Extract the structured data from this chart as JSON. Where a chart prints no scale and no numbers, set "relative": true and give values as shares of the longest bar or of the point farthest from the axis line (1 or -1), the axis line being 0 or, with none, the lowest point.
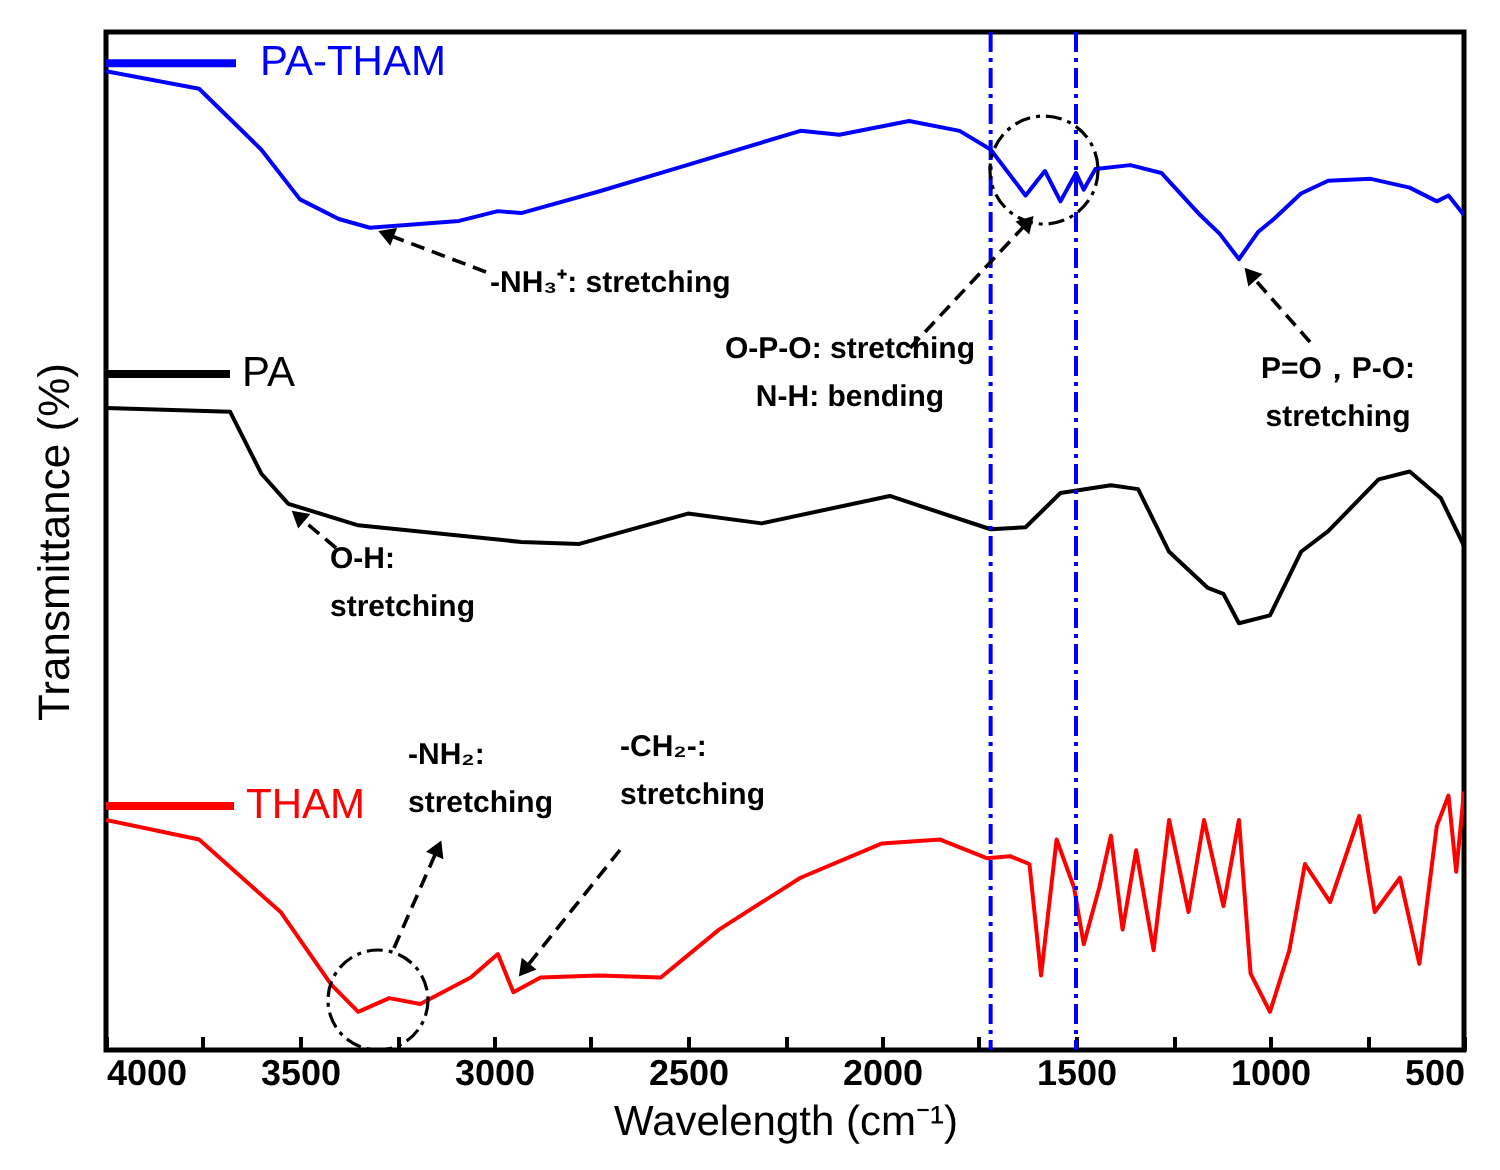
{
  "chart_data": {
    "type": "line",
    "relative": true,
    "xlabel": "Wavelength (cm⁻¹)",
    "legend": "top left",
    "ylabel": "Transmittance (%)",
    "xlim": [
      4000,
      500
    ],
    "xticks": [
      4000,
      {
        "value": 3750,
        "label": null
      },
      3500,
      {
        "value": 3250,
        "label": null
      },
      3000,
      {
        "value": 2750,
        "label": null
      },
      2500,
      {
        "value": 2250,
        "label": null
      },
      2000,
      {
        "value": 1750,
        "label": null
      },
      1500,
      {
        "value": 1250,
        "label": null
      },
      1000,
      {
        "value": 750,
        "label": null
      },
      500
    ],
    "series": [
      {
        "name": "PA-THAM",
        "color": "#0000ff",
        "x": [
          4000,
          3760,
          3600,
          3500,
          3400,
          3320,
          3090,
          2990,
          2930,
          2730,
          2520,
          2210,
          2110,
          1930,
          1800,
          1720,
          1630,
          1580,
          1540,
          1500,
          1480,
          1450,
          1360,
          1280,
          1180,
          1130,
          1080,
          1030,
          990,
          920,
          850,
          740,
          640,
          570,
          540,
          500
        ],
        "values": [
          1.0,
          0.982,
          0.92,
          0.869,
          0.849,
          0.84,
          0.847,
          0.857,
          0.855,
          0.877,
          0.902,
          0.939,
          0.935,
          0.949,
          0.939,
          0.92,
          0.873,
          0.898,
          0.867,
          0.896,
          0.879,
          0.9,
          0.904,
          0.896,
          0.853,
          0.834,
          0.808,
          0.836,
          0.849,
          0.875,
          0.888,
          0.89,
          0.881,
          0.867,
          0.873,
          0.853
        ]
      },
      {
        "name": "PA",
        "color": "#000000",
        "x": [
          4000,
          3680,
          3600,
          3530,
          3350,
          2930,
          2780,
          2500,
          2310,
          1980,
          1720,
          1630,
          1540,
          1410,
          1340,
          1260,
          1160,
          1120,
          1080,
          1000,
          920,
          850,
          720,
          640,
          560,
          500
        ],
        "values": [
          0.656,
          0.652,
          0.589,
          0.558,
          0.536,
          0.519,
          0.517,
          0.548,
          0.538,
          0.566,
          0.532,
          0.534,
          0.569,
          0.577,
          0.573,
          0.509,
          0.472,
          0.466,
          0.436,
          0.444,
          0.509,
          0.53,
          0.583,
          0.591,
          0.564,
          0.515
        ]
      },
      {
        "name": "THAM",
        "color": "#ff0000",
        "x": [
          4000,
          3760,
          3550,
          3420,
          3350,
          3270,
          3190,
          3060,
          2990,
          2950,
          2880,
          2730,
          2570,
          2420,
          2210,
          2000,
          1850,
          1730,
          1670,
          1620,
          1590,
          1550,
          1505,
          1480,
          1440,
          1410,
          1380,
          1345,
          1300,
          1260,
          1210,
          1170,
          1120,
          1080,
          1050,
          1000,
          950,
          910,
          845,
          770,
          730,
          665,
          615,
          570,
          540,
          520,
          500
        ],
        "values": [
          0.235,
          0.215,
          0.141,
          0.067,
          0.039,
          0.053,
          0.047,
          0.074,
          0.098,
          0.059,
          0.074,
          0.076,
          0.074,
          0.123,
          0.176,
          0.211,
          0.215,
          0.196,
          0.198,
          0.19,
          0.076,
          0.215,
          0.166,
          0.108,
          0.166,
          0.219,
          0.123,
          0.204,
          0.102,
          0.235,
          0.141,
          0.235,
          0.147,
          0.235,
          0.078,
          0.039,
          0.102,
          0.19,
          0.151,
          0.239,
          0.141,
          0.176,
          0.088,
          0.229,
          0.26,
          0.182,
          0.264
        ]
      }
    ],
    "ref_lines": [
      {
        "axis": "x",
        "value": 1720,
        "color": "#0000ff",
        "line_style": "dashed"
      },
      {
        "axis": "x",
        "value": 1500,
        "color": "#0000ff",
        "line_style": "dashed"
      }
    ],
    "annotations": [
      "-NH₃⁺: stretching",
      "O-P-O: stretching\nN-H: bending",
      "P=O，P-O:\nstretching",
      "O-H:\nstretching",
      "-NH₂:\nstretching",
      "-CH₂-:\nstretching"
    ]
  }
}
